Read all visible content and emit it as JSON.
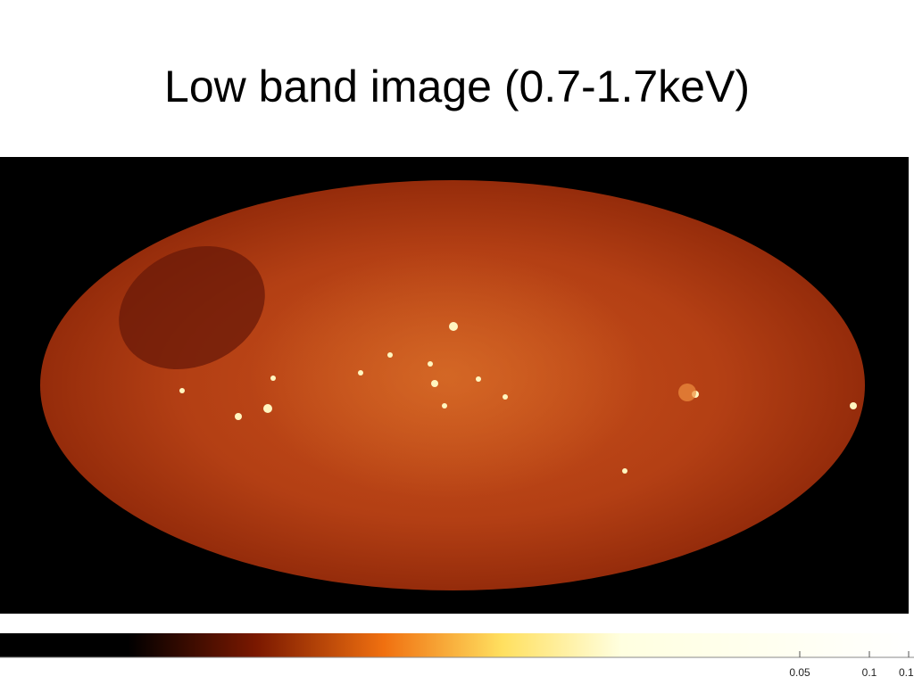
{
  "slide": {
    "title": "Low band image (0.7-1.7keV)",
    "colorbar": {
      "tick_labels": [
        "0.05",
        "0.1",
        "0.1"
      ]
    }
  }
}
